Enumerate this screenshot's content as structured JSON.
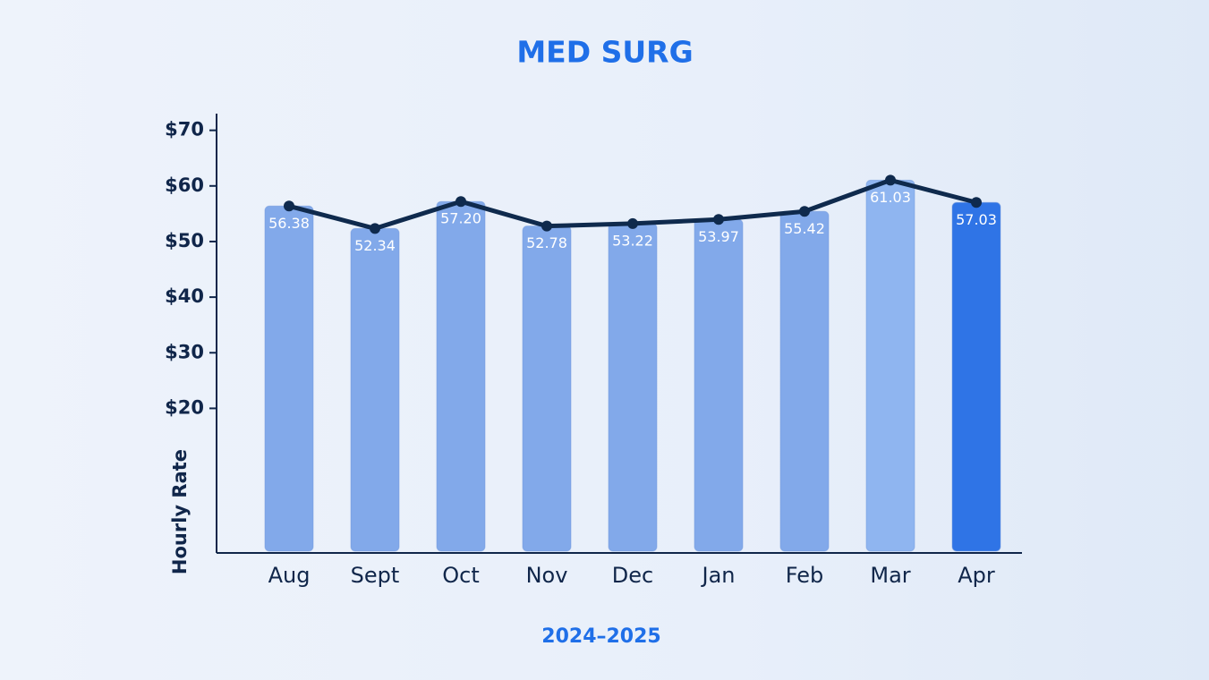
{
  "chart_data": {
    "type": "bar-line",
    "title": "MED SURG",
    "x_label": "2024–2025",
    "y_label": "Hourly Rate",
    "categories": [
      "Aug",
      "Sept",
      "Oct",
      "Nov",
      "Dec",
      "Jan",
      "Feb",
      "Mar",
      "Apr"
    ],
    "values": [
      56.38,
      52.34,
      57.2,
      52.78,
      53.22,
      53.97,
      55.42,
      61.03,
      57.03
    ],
    "value_labels": [
      "56.38",
      "52.34",
      "57.20",
      "52.78",
      "53.22",
      "53.97",
      "55.42",
      "61.03",
      "57.03"
    ],
    "bar_colors": [
      "#82a9ea",
      "#82a9ea",
      "#82a9ea",
      "#82a9ea",
      "#82a9ea",
      "#82a9ea",
      "#82a9ea",
      "#8fb5f0",
      "#2f74e6"
    ],
    "line_color": "#0f2a4d",
    "ylim": [
      -6,
      73
    ],
    "yticks": [
      {
        "value": 20,
        "label": "$20"
      },
      {
        "value": 30,
        "label": "$30"
      },
      {
        "value": 40,
        "label": "$40"
      },
      {
        "value": 50,
        "label": "$50"
      },
      {
        "value": 60,
        "label": "$60"
      },
      {
        "value": 70,
        "label": "$70"
      }
    ]
  }
}
